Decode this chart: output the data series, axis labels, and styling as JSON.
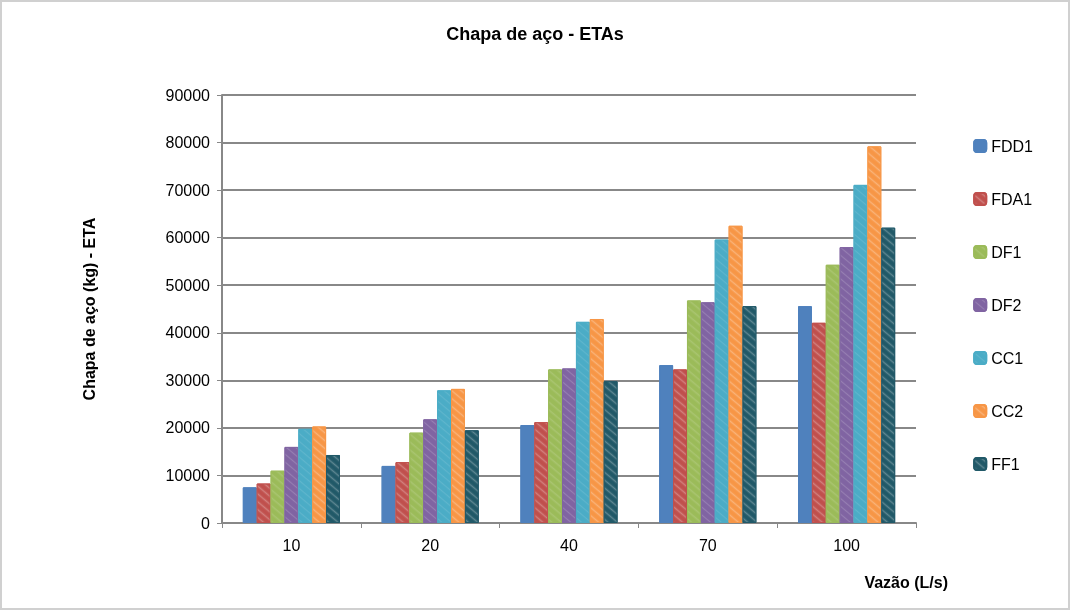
{
  "chart_data": {
    "type": "bar",
    "title": "Chapa de aço - ETAs",
    "xlabel": "Vazão (L/s)",
    "ylabel": "Chapa de aço (kg) - ETA",
    "categories": [
      "10",
      "20",
      "40",
      "70",
      "100"
    ],
    "series": [
      {
        "name": "FDD1",
        "color": "#4f81bd",
        "values": [
          7500,
          12000,
          20600,
          33200,
          45600
        ]
      },
      {
        "name": "FDA1",
        "color": "#c0504d",
        "values": [
          8300,
          12800,
          21200,
          32300,
          42100
        ]
      },
      {
        "name": "DF1",
        "color": "#9bbb59",
        "values": [
          11000,
          19000,
          32300,
          46800,
          54300
        ]
      },
      {
        "name": "DF2",
        "color": "#8064a2",
        "values": [
          16000,
          21800,
          32500,
          46400,
          58000
        ]
      },
      {
        "name": "CC1",
        "color": "#4bacc6",
        "values": [
          19800,
          27900,
          42300,
          59600,
          71100
        ]
      },
      {
        "name": "CC2",
        "color": "#f79646",
        "values": [
          20300,
          28200,
          42900,
          62500,
          79200
        ]
      },
      {
        "name": "FF1",
        "color": "#215968",
        "values": [
          14300,
          19500,
          29800,
          45600,
          62100
        ]
      }
    ],
    "ylim": [
      0,
      90000
    ],
    "yticks": [
      0,
      10000,
      20000,
      30000,
      40000,
      50000,
      60000,
      70000,
      80000,
      90000
    ],
    "grid": "y",
    "legend": "right"
  }
}
